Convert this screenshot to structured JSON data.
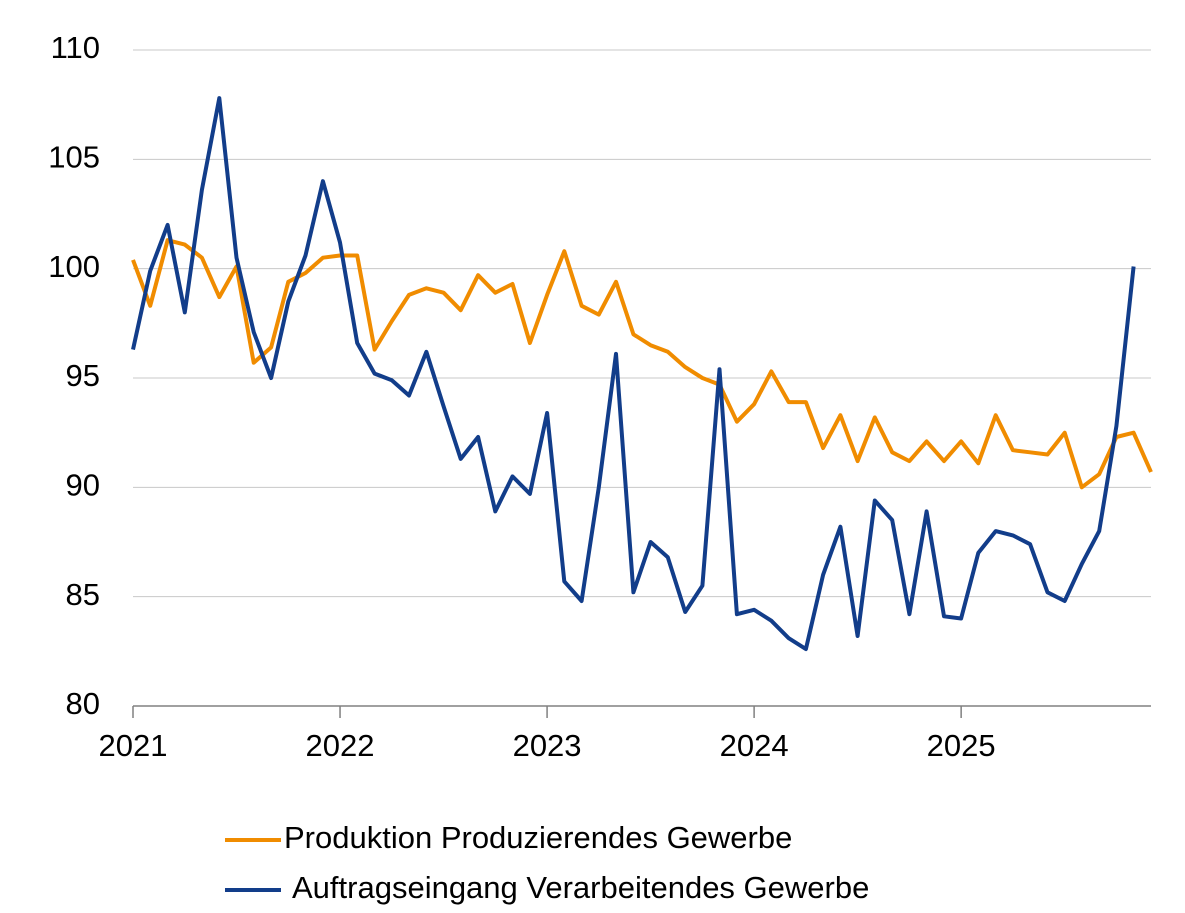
{
  "chart_data": {
    "type": "line",
    "x": [
      2021,
      2021.083,
      2021.167,
      2021.25,
      2021.333,
      2021.417,
      2021.5,
      2021.583,
      2021.667,
      2021.75,
      2021.833,
      2021.917,
      2022,
      2022.083,
      2022.167,
      2022.25,
      2022.333,
      2022.417,
      2022.5,
      2022.583,
      2022.667,
      2022.75,
      2022.833,
      2022.917,
      2023,
      2023.083,
      2023.167,
      2023.25,
      2023.333,
      2023.417,
      2023.5,
      2023.583,
      2023.667,
      2023.75,
      2023.833,
      2023.917,
      2024,
      2024.083,
      2024.167,
      2024.25,
      2024.333,
      2024.417,
      2024.5,
      2024.583,
      2024.667,
      2024.75,
      2024.833,
      2024.917,
      2025,
      2025.083,
      2025.167,
      2025.25,
      2025.333,
      2025.417,
      2025.5,
      2025.583,
      2025.667,
      2025.75,
      2025.833,
      2025.917
    ],
    "series": [
      {
        "name": "Produktion Produzierendes Gewerbe",
        "color": "#f08c00",
        "values": [
          100.4,
          98.3,
          101.3,
          101.1,
          100.5,
          98.7,
          100.1,
          95.7,
          96.4,
          99.4,
          99.8,
          100.5,
          100.6,
          100.6,
          96.3,
          97.6,
          98.8,
          99.1,
          98.9,
          98.1,
          99.7,
          98.9,
          99.3,
          96.6,
          98.8,
          100.8,
          98.3,
          97.9,
          99.4,
          97.0,
          96.5,
          96.2,
          95.5,
          95.0,
          94.7,
          93.0,
          93.8,
          95.3,
          93.9,
          93.9,
          91.8,
          93.3,
          91.2,
          93.2,
          91.6,
          91.2,
          92.1,
          91.2,
          92.1,
          91.1,
          93.3,
          91.7,
          91.6,
          91.5,
          92.5,
          90.0,
          90.6,
          92.3,
          92.5,
          90.7
        ]
      },
      {
        "name": "Auftragseingang Verarbeitendes Gewerbe",
        "color": "#123d8a",
        "values": [
          96.3,
          99.9,
          102.0,
          98.0,
          103.6,
          107.8,
          100.5,
          97.1,
          95.0,
          98.5,
          100.6,
          104.0,
          101.2,
          96.6,
          95.2,
          94.9,
          94.2,
          96.2,
          93.7,
          91.3,
          92.3,
          88.9,
          90.5,
          89.7,
          93.4,
          85.7,
          84.8,
          90.0,
          96.1,
          85.2,
          87.5,
          86.8,
          84.3,
          85.5,
          95.4,
          84.2,
          84.4,
          83.9,
          83.1,
          82.6,
          86.0,
          88.2,
          83.2,
          89.4,
          88.5,
          84.2,
          88.9,
          84.1,
          84.0,
          87.0,
          88.0,
          87.8,
          87.4,
          85.2,
          84.8,
          86.5,
          88.0,
          92.8,
          100.1,
          null
        ]
      }
    ],
    "xlim": [
      2021,
      2025.917
    ],
    "xticks": [
      2021,
      2022,
      2023,
      2024,
      2025
    ],
    "ylim": [
      80,
      110
    ],
    "yticks": [
      80,
      85,
      90,
      95,
      100,
      105,
      110
    ],
    "grid": true,
    "legend": "bottom"
  }
}
